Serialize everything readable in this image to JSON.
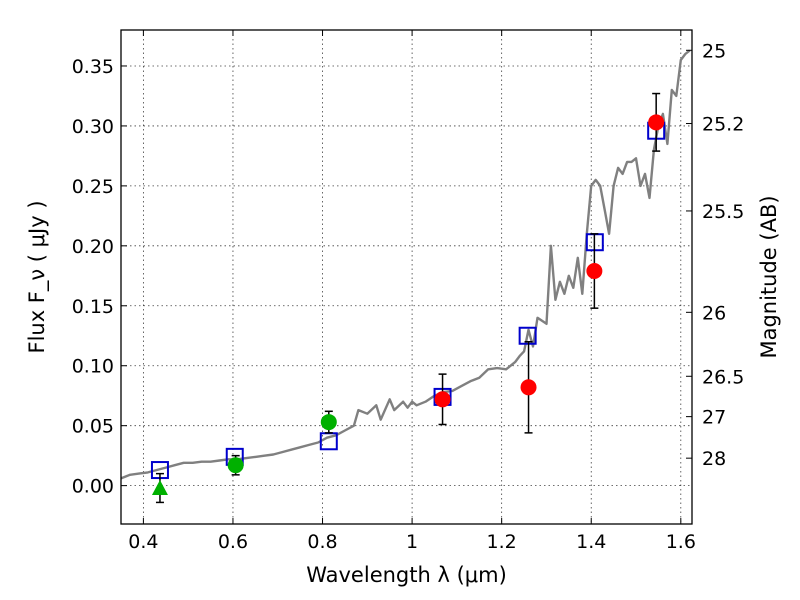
{
  "chart_data": {
    "type": "scatter",
    "xlabel": "Wavelength  λ (μm)",
    "ylabel": "Flux  F_ν  ( μJy )",
    "ylabel_right": "Magnitude (AB)",
    "xlim": [
      0.35,
      1.625
    ],
    "ylim": [
      -0.032,
      0.38
    ],
    "grid": true,
    "x_ticks": [
      {
        "value": 0.4,
        "label": "0.4"
      },
      {
        "value": 0.6,
        "label": "0.6"
      },
      {
        "value": 0.8,
        "label": "0.8"
      },
      {
        "value": 1.0,
        "label": "1"
      },
      {
        "value": 1.2,
        "label": "1.2"
      },
      {
        "value": 1.4,
        "label": "1.4"
      },
      {
        "value": 1.6,
        "label": "1.6"
      }
    ],
    "y_ticks": [
      {
        "value": 0.0,
        "label": "0.00"
      },
      {
        "value": 0.05,
        "label": "0.05"
      },
      {
        "value": 0.1,
        "label": "0.10"
      },
      {
        "value": 0.15,
        "label": "0.15"
      },
      {
        "value": 0.2,
        "label": "0.20"
      },
      {
        "value": 0.25,
        "label": "0.25"
      },
      {
        "value": 0.3,
        "label": "0.30"
      },
      {
        "value": 0.35,
        "label": "0.35"
      }
    ],
    "right_ticks": [
      {
        "value": 25,
        "label": "25"
      },
      {
        "value": 25.2,
        "label": "25.2"
      },
      {
        "value": 25.5,
        "label": "25.5"
      },
      {
        "value": 26,
        "label": "26"
      },
      {
        "value": 26.5,
        "label": "26.5"
      },
      {
        "value": 27,
        "label": "27"
      },
      {
        "value": 28,
        "label": "28"
      }
    ],
    "series": [
      {
        "kind": "line",
        "color": "#808080",
        "x": [
          0.35,
          0.37,
          0.39,
          0.41,
          0.43,
          0.45,
          0.47,
          0.49,
          0.51,
          0.53,
          0.55,
          0.57,
          0.59,
          0.61,
          0.63,
          0.65,
          0.67,
          0.69,
          0.71,
          0.73,
          0.75,
          0.77,
          0.79,
          0.81,
          0.83,
          0.85,
          0.87,
          0.88,
          0.9,
          0.92,
          0.93,
          0.95,
          0.96,
          0.98,
          0.99,
          1.0,
          1.01,
          1.03,
          1.05,
          1.07,
          1.09,
          1.11,
          1.13,
          1.15,
          1.17,
          1.19,
          1.21,
          1.23,
          1.24,
          1.25,
          1.26,
          1.27,
          1.28,
          1.3,
          1.31,
          1.32,
          1.33,
          1.34,
          1.35,
          1.36,
          1.37,
          1.38,
          1.39,
          1.4,
          1.41,
          1.42,
          1.43,
          1.44,
          1.45,
          1.46,
          1.47,
          1.48,
          1.49,
          1.5,
          1.51,
          1.52,
          1.53,
          1.54,
          1.55,
          1.56,
          1.57,
          1.58,
          1.59,
          1.6,
          1.61,
          1.62
        ],
        "y": [
          0.006,
          0.009,
          0.01,
          0.011,
          0.013,
          0.015,
          0.017,
          0.019,
          0.019,
          0.02,
          0.02,
          0.021,
          0.022,
          0.022,
          0.023,
          0.024,
          0.025,
          0.026,
          0.028,
          0.03,
          0.032,
          0.034,
          0.036,
          0.04,
          0.042,
          0.046,
          0.05,
          0.063,
          0.06,
          0.067,
          0.055,
          0.072,
          0.063,
          0.07,
          0.065,
          0.07,
          0.067,
          0.07,
          0.075,
          0.078,
          0.079,
          0.083,
          0.087,
          0.09,
          0.097,
          0.098,
          0.097,
          0.103,
          0.108,
          0.112,
          0.13,
          0.116,
          0.14,
          0.135,
          0.2,
          0.155,
          0.17,
          0.16,
          0.175,
          0.165,
          0.19,
          0.16,
          0.21,
          0.25,
          0.255,
          0.25,
          0.23,
          0.21,
          0.25,
          0.265,
          0.26,
          0.27,
          0.27,
          0.273,
          0.25,
          0.26,
          0.24,
          0.28,
          0.3,
          0.31,
          0.285,
          0.33,
          0.325,
          0.355,
          0.36,
          0.363
        ]
      },
      {
        "kind": "model-squares",
        "color": "#0000cc",
        "x": [
          0.437,
          0.604,
          0.814,
          1.068,
          1.258,
          1.408,
          1.545
        ],
        "y": [
          0.013,
          0.024,
          0.037,
          0.074,
          0.125,
          0.203,
          0.296
        ]
      },
      {
        "kind": "green-circles",
        "color": "#00b000",
        "x": [
          0.606,
          0.814
        ],
        "y": [
          0.017,
          0.053
        ],
        "err": [
          0.008,
          0.009
        ]
      },
      {
        "kind": "green-triangle",
        "color": "#00b000",
        "x": [
          0.437
        ],
        "y": [
          -0.002
        ],
        "err": [
          0.012
        ]
      },
      {
        "kind": "red-circles",
        "color": "#ff0000",
        "x": [
          1.068,
          1.26,
          1.407,
          1.545
        ],
        "y": [
          0.072,
          0.082,
          0.179,
          0.303
        ],
        "err": [
          0.021,
          0.038,
          0.031,
          0.024
        ]
      }
    ]
  }
}
